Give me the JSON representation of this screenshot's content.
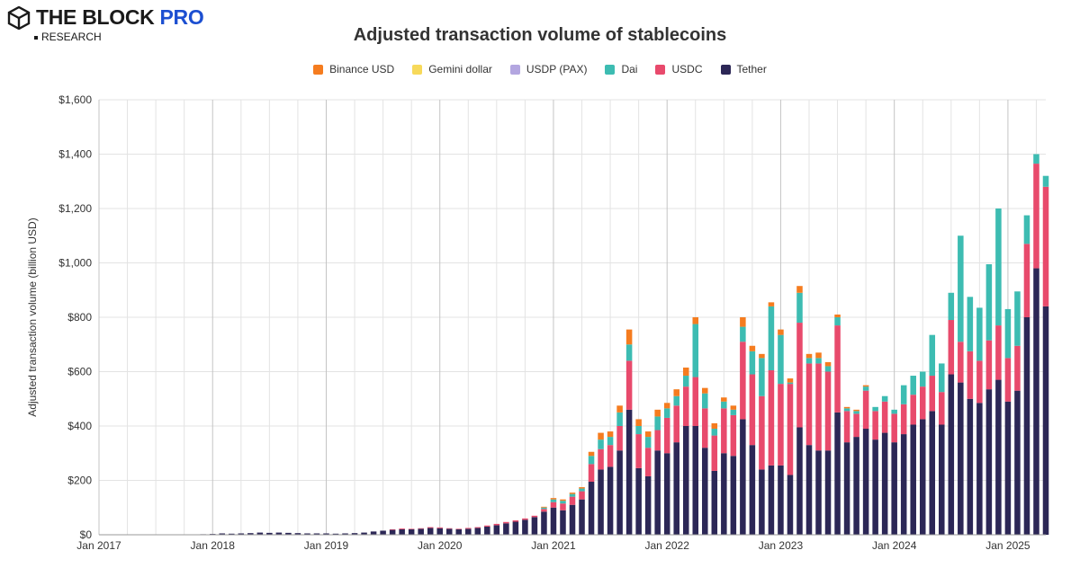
{
  "brand": {
    "name": "THE BLOCK",
    "pro": "PRO",
    "sub": "RESEARCH"
  },
  "chart_data": {
    "type": "bar",
    "stacked": true,
    "title": "Adjusted transaction volume of stablecoins",
    "ylabel": "Adjusted transaction volume (billion USD)",
    "xlabel": "",
    "ylim": [
      0,
      1600
    ],
    "y_ticks": [
      0,
      200,
      400,
      600,
      800,
      1000,
      1200,
      1400,
      1600
    ],
    "y_tick_format": "$",
    "x_ticks": [
      "Jan 2017",
      "Jan 2018",
      "Jan 2019",
      "Jan 2020",
      "Jan 2021",
      "Jan 2022",
      "Jan 2023",
      "Jan 2024",
      "Jan 2025"
    ],
    "grid": "vertical-quarterly-and-yearly",
    "legend_position": "top-center",
    "start_month": "Jan 2017",
    "series": [
      {
        "name": "Tether",
        "color": "#2c2756",
        "values": [
          0,
          0,
          0,
          0,
          0,
          0,
          0,
          0,
          0,
          1,
          1,
          2,
          3,
          5,
          4,
          5,
          6,
          8,
          7,
          8,
          7,
          6,
          5,
          5,
          5,
          4,
          5,
          6,
          8,
          12,
          15,
          18,
          20,
          20,
          22,
          25,
          24,
          22,
          20,
          22,
          25,
          30,
          35,
          42,
          48,
          55,
          65,
          85,
          100,
          90,
          110,
          130,
          195,
          240,
          250,
          310,
          460,
          245,
          215,
          310,
          300,
          340,
          400,
          400,
          320,
          235,
          300,
          290,
          425,
          330,
          240,
          255,
          255,
          220,
          395,
          330,
          310,
          310,
          450,
          340,
          360,
          390,
          350,
          375,
          340,
          370,
          405,
          425,
          455,
          405,
          590,
          560,
          500,
          485,
          535,
          570,
          490,
          530,
          800,
          980,
          840
        ]
      },
      {
        "name": "USDC",
        "color": "#e84a6c",
        "values": [
          0,
          0,
          0,
          0,
          0,
          0,
          0,
          0,
          0,
          0,
          0,
          0,
          0,
          0,
          0,
          0,
          0,
          0,
          0,
          0,
          0,
          0,
          0,
          0,
          0,
          0,
          0,
          0,
          0,
          0,
          0,
          2,
          3,
          2,
          2,
          3,
          3,
          2,
          2,
          3,
          3,
          4,
          5,
          5,
          5,
          5,
          5,
          10,
          20,
          25,
          30,
          30,
          65,
          75,
          80,
          90,
          180,
          125,
          105,
          75,
          130,
          135,
          145,
          180,
          145,
          130,
          165,
          150,
          285,
          260,
          270,
          350,
          300,
          335,
          385,
          300,
          320,
          290,
          320,
          115,
          85,
          140,
          105,
          115,
          105,
          110,
          110,
          120,
          130,
          120,
          200,
          150,
          175,
          155,
          180,
          200,
          160,
          165,
          270,
          385,
          440
        ]
      },
      {
        "name": "Dai",
        "color": "#3dbcb2",
        "values": [
          0,
          0,
          0,
          0,
          0,
          0,
          0,
          0,
          0,
          0,
          0,
          0,
          0,
          0,
          0,
          0,
          0,
          0,
          0,
          0,
          0,
          0,
          0,
          0,
          0,
          0,
          0,
          0,
          0,
          0,
          0,
          0,
          0,
          0,
          0,
          0,
          0,
          0,
          0,
          0,
          0,
          0,
          0,
          0,
          0,
          0,
          0,
          5,
          10,
          10,
          10,
          10,
          30,
          35,
          30,
          50,
          60,
          30,
          40,
          50,
          35,
          35,
          40,
          195,
          55,
          25,
          25,
          20,
          55,
          85,
          140,
          235,
          180,
          5,
          110,
          20,
          20,
          20,
          30,
          10,
          10,
          15,
          15,
          20,
          15,
          70,
          70,
          55,
          150,
          105,
          100,
          390,
          200,
          195,
          280,
          430,
          180,
          200,
          105,
          35,
          40
        ]
      },
      {
        "name": "USDP (PAX)",
        "color": "#b3a6e0",
        "values": [
          0,
          0,
          0,
          0,
          0,
          0,
          0,
          0,
          0,
          0,
          0,
          0,
          0,
          0,
          0,
          0,
          0,
          0,
          0,
          0,
          0,
          0,
          0,
          0,
          0,
          0,
          0,
          0,
          0,
          0,
          0,
          0,
          0,
          0,
          0,
          0,
          0,
          0,
          0,
          0,
          0,
          0,
          0,
          0,
          0,
          0,
          0,
          0,
          0,
          0,
          0,
          0,
          0,
          0,
          0,
          0,
          0,
          0,
          0,
          0,
          0,
          0,
          0,
          0,
          0,
          0,
          0,
          0,
          0,
          0,
          0,
          0,
          0,
          0,
          0,
          0,
          0,
          0,
          0,
          0,
          0,
          0,
          0,
          0,
          0,
          0,
          0,
          0,
          0,
          0,
          0,
          0,
          0,
          0,
          0,
          0,
          0,
          0,
          0,
          0,
          0
        ]
      },
      {
        "name": "Gemini dollar",
        "color": "#f7d95a",
        "values": [
          0,
          0,
          0,
          0,
          0,
          0,
          0,
          0,
          0,
          0,
          0,
          0,
          0,
          0,
          0,
          0,
          0,
          0,
          0,
          0,
          0,
          0,
          0,
          0,
          0,
          0,
          0,
          0,
          0,
          0,
          0,
          0,
          0,
          0,
          0,
          0,
          0,
          0,
          0,
          0,
          0,
          0,
          0,
          0,
          0,
          0,
          0,
          0,
          0,
          0,
          0,
          0,
          0,
          0,
          0,
          0,
          0,
          0,
          0,
          0,
          0,
          0,
          0,
          0,
          0,
          0,
          0,
          0,
          0,
          0,
          0,
          0,
          0,
          0,
          0,
          0,
          0,
          0,
          0,
          0,
          0,
          0,
          0,
          0,
          0,
          0,
          0,
          0,
          0,
          0,
          0,
          0,
          0,
          0,
          0,
          0,
          0,
          0,
          0,
          0,
          0
        ]
      },
      {
        "name": "Binance USD",
        "color": "#f57c1f",
        "values": [
          0,
          0,
          0,
          0,
          0,
          0,
          0,
          0,
          0,
          0,
          0,
          0,
          0,
          0,
          0,
          0,
          0,
          0,
          0,
          0,
          0,
          0,
          0,
          0,
          0,
          0,
          0,
          0,
          0,
          0,
          0,
          0,
          0,
          0,
          0,
          0,
          0,
          0,
          0,
          0,
          0,
          0,
          0,
          0,
          0,
          0,
          0,
          3,
          5,
          5,
          5,
          5,
          15,
          25,
          20,
          25,
          55,
          25,
          20,
          25,
          20,
          25,
          30,
          25,
          20,
          20,
          15,
          15,
          35,
          20,
          15,
          15,
          20,
          15,
          25,
          15,
          20,
          15,
          10,
          5,
          5,
          5,
          0,
          0,
          0,
          0,
          0,
          0,
          0,
          0,
          0,
          0,
          0,
          0,
          0,
          0,
          0,
          0,
          0,
          0,
          0
        ]
      }
    ]
  }
}
